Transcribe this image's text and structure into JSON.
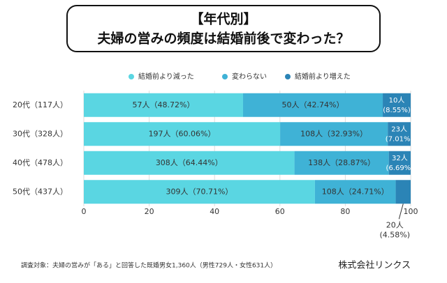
{
  "chart_data": {
    "type": "stacked-barh",
    "title": "【年代別】",
    "subtitle": "夫婦の営みの頻度は結婚前後で変わった？",
    "categories": [
      "20代（117人）",
      "30代（328人）",
      "40代（478人）",
      "50代（437人）"
    ],
    "series": [
      {
        "name": "結婚前より減った",
        "color": "#5ad6e2",
        "values": [
          48.72,
          60.06,
          64.44,
          70.71
        ],
        "value_labels": [
          "57人（48.72%）",
          "197人（60.06%）",
          "308人（64.44%）",
          "309人（70.71%）"
        ]
      },
      {
        "name": "変わらない",
        "color": "#3fb2d6",
        "values": [
          42.74,
          32.93,
          28.87,
          24.71
        ],
        "value_labels": [
          "50人（42.74%）",
          "108人（32.93%）",
          "138人（28.87%）",
          "108人（24.71%）"
        ]
      },
      {
        "name": "結婚前より増えた",
        "color": "#2b84b6",
        "values": [
          8.55,
          7.01,
          6.69,
          4.58
        ],
        "value_labels": [
          [
            "10人",
            "(8.55%)"
          ],
          [
            "23人",
            "(7.01%)"
          ],
          [
            "32人",
            "(6.69%)"
          ],
          [
            "20人",
            "(4.58%)"
          ]
        ]
      }
    ],
    "xlim": [
      0,
      100
    ],
    "xticks": [
      0,
      20,
      40,
      60,
      80,
      100
    ],
    "grid": true,
    "footnote": "調査対象：夫婦の営みが「ある」と回答した既婚男女1,360人（男性729人・女性631人）",
    "source": "株式会社リンクス"
  }
}
